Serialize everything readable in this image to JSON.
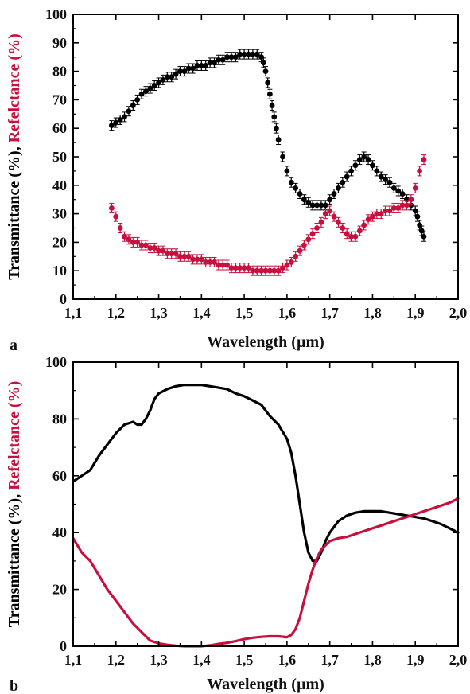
{
  "chart_data": [
    {
      "type": "scatter",
      "panel_label": "a",
      "xlabel": "Wavelength (µm)",
      "ylabel_parts": [
        "Transmittance (%), ",
        "Refelctance (%)"
      ],
      "xlim": [
        1.1,
        2.0
      ],
      "ylim": [
        0,
        100
      ],
      "x_ticks": [
        "1,1",
        "1,2",
        "1,3",
        "1,4",
        "1,5",
        "1,6",
        "1,7",
        "1,8",
        "1,9",
        "2,0"
      ],
      "y_ticks": [
        "0",
        "10",
        "20",
        "30",
        "40",
        "50",
        "60",
        "70",
        "80",
        "90",
        "100"
      ],
      "error_bars": true,
      "series": [
        {
          "color": "#000000",
          "x": [
            1.19,
            1.2,
            1.21,
            1.22,
            1.23,
            1.24,
            1.25,
            1.26,
            1.27,
            1.28,
            1.29,
            1.3,
            1.31,
            1.32,
            1.33,
            1.34,
            1.35,
            1.36,
            1.37,
            1.38,
            1.39,
            1.4,
            1.41,
            1.42,
            1.43,
            1.44,
            1.45,
            1.46,
            1.47,
            1.48,
            1.49,
            1.5,
            1.51,
            1.52,
            1.53,
            1.54,
            1.545,
            1.55,
            1.555,
            1.56,
            1.565,
            1.57,
            1.575,
            1.58,
            1.59,
            1.6,
            1.61,
            1.62,
            1.63,
            1.64,
            1.65,
            1.66,
            1.67,
            1.68,
            1.69,
            1.7,
            1.71,
            1.72,
            1.73,
            1.74,
            1.75,
            1.76,
            1.77,
            1.78,
            1.79,
            1.8,
            1.81,
            1.82,
            1.83,
            1.84,
            1.85,
            1.86,
            1.87,
            1.88,
            1.89,
            1.9,
            1.905,
            1.91,
            1.915,
            1.92
          ],
          "y": [
            61,
            62,
            63,
            64,
            66,
            68,
            70,
            72,
            73,
            74,
            75,
            76,
            77,
            78,
            78,
            79,
            80,
            80,
            81,
            81,
            82,
            82,
            82,
            83,
            83,
            84,
            84,
            85,
            85,
            85,
            86,
            86,
            86,
            86,
            86,
            85,
            83,
            80,
            76,
            72,
            68,
            64,
            60,
            56,
            50,
            45,
            41,
            39,
            37,
            35,
            34,
            33,
            33,
            33,
            33,
            35,
            37,
            39,
            41,
            43,
            45,
            47,
            49,
            50,
            49,
            47,
            45,
            43,
            42,
            41,
            39,
            38,
            37,
            35,
            33,
            31,
            29,
            26,
            24,
            22
          ]
        },
        {
          "color": "#c8103e",
          "x": [
            1.19,
            1.2,
            1.21,
            1.22,
            1.23,
            1.24,
            1.25,
            1.26,
            1.27,
            1.28,
            1.29,
            1.3,
            1.31,
            1.32,
            1.33,
            1.34,
            1.35,
            1.36,
            1.37,
            1.38,
            1.39,
            1.4,
            1.41,
            1.42,
            1.43,
            1.44,
            1.45,
            1.46,
            1.47,
            1.48,
            1.49,
            1.5,
            1.51,
            1.52,
            1.53,
            1.54,
            1.55,
            1.56,
            1.57,
            1.58,
            1.59,
            1.6,
            1.61,
            1.62,
            1.63,
            1.64,
            1.65,
            1.66,
            1.67,
            1.68,
            1.69,
            1.7,
            1.71,
            1.72,
            1.73,
            1.74,
            1.75,
            1.76,
            1.77,
            1.78,
            1.79,
            1.8,
            1.81,
            1.82,
            1.83,
            1.84,
            1.85,
            1.86,
            1.87,
            1.88,
            1.89,
            1.9,
            1.91,
            1.92
          ],
          "y": [
            32,
            29,
            25,
            22,
            21,
            20,
            20,
            19,
            19,
            18,
            18,
            17,
            17,
            16,
            16,
            16,
            15,
            15,
            15,
            14,
            14,
            14,
            13,
            13,
            13,
            12,
            12,
            12,
            11,
            11,
            11,
            11,
            11,
            10,
            10,
            10,
            10,
            10,
            10,
            10,
            11,
            12,
            13,
            15,
            17,
            19,
            21,
            23,
            25,
            27,
            30,
            31,
            29,
            27,
            25,
            23,
            22,
            22,
            24,
            26,
            28,
            29,
            30,
            30,
            31,
            31,
            32,
            32,
            33,
            33,
            35,
            39,
            45,
            49
          ]
        }
      ]
    },
    {
      "type": "line",
      "panel_label": "b",
      "xlabel": "Wavelength (µm)",
      "ylabel_parts": [
        "Transmittance (%), ",
        "Refelctance (%)"
      ],
      "xlim": [
        1.1,
        2.0
      ],
      "ylim": [
        0,
        100
      ],
      "x_ticks": [
        "1,1",
        "1,2",
        "1,3",
        "1,4",
        "1,5",
        "1,6",
        "1,7",
        "1,8",
        "1,9",
        "2,0"
      ],
      "y_ticks": [
        "0",
        "20",
        "40",
        "60",
        "80",
        "100"
      ],
      "series": [
        {
          "color": "#000000",
          "x": [
            1.1,
            1.12,
            1.14,
            1.16,
            1.18,
            1.2,
            1.22,
            1.24,
            1.25,
            1.26,
            1.27,
            1.28,
            1.29,
            1.3,
            1.32,
            1.34,
            1.36,
            1.38,
            1.4,
            1.42,
            1.44,
            1.46,
            1.48,
            1.5,
            1.52,
            1.54,
            1.56,
            1.58,
            1.6,
            1.61,
            1.62,
            1.63,
            1.64,
            1.65,
            1.66,
            1.67,
            1.68,
            1.69,
            1.7,
            1.72,
            1.74,
            1.76,
            1.78,
            1.8,
            1.82,
            1.84,
            1.86,
            1.88,
            1.9,
            1.92,
            1.94,
            1.96,
            1.98,
            2.0
          ],
          "y": [
            58,
            60,
            62,
            67,
            71,
            75,
            78,
            79,
            78,
            78,
            80,
            83,
            87,
            89,
            90.5,
            91.5,
            92,
            92,
            92,
            91.5,
            91,
            90.5,
            89,
            88,
            86.5,
            85,
            81,
            78,
            73,
            68,
            60,
            50,
            40,
            33,
            30,
            30,
            33,
            37,
            40,
            44,
            46,
            47,
            47.5,
            47.5,
            47.5,
            47,
            46.5,
            46,
            45.5,
            45,
            44,
            43,
            41.5,
            40
          ]
        },
        {
          "color": "#c8103e",
          "x": [
            1.1,
            1.12,
            1.14,
            1.16,
            1.18,
            1.2,
            1.22,
            1.24,
            1.26,
            1.28,
            1.3,
            1.32,
            1.34,
            1.36,
            1.38,
            1.4,
            1.42,
            1.44,
            1.46,
            1.48,
            1.5,
            1.52,
            1.54,
            1.56,
            1.58,
            1.6,
            1.61,
            1.62,
            1.63,
            1.64,
            1.65,
            1.66,
            1.67,
            1.68,
            1.7,
            1.72,
            1.74,
            1.76,
            1.78,
            1.8,
            1.82,
            1.84,
            1.86,
            1.88,
            1.9,
            1.92,
            1.94,
            1.96,
            1.98,
            2.0
          ],
          "y": [
            38,
            33,
            30,
            25,
            20,
            16,
            12,
            8,
            5,
            2,
            1,
            0.5,
            0.2,
            0,
            0,
            0,
            0.3,
            0.8,
            1.2,
            1.8,
            2.5,
            3,
            3.3,
            3.5,
            3.5,
            3.2,
            4,
            6,
            10,
            16,
            22,
            27,
            31,
            34,
            37,
            38,
            38.5,
            39.5,
            40.5,
            41.5,
            42.5,
            43.5,
            44.5,
            45.5,
            46.5,
            47.5,
            48.5,
            49.5,
            50.5,
            52
          ]
        }
      ]
    }
  ]
}
